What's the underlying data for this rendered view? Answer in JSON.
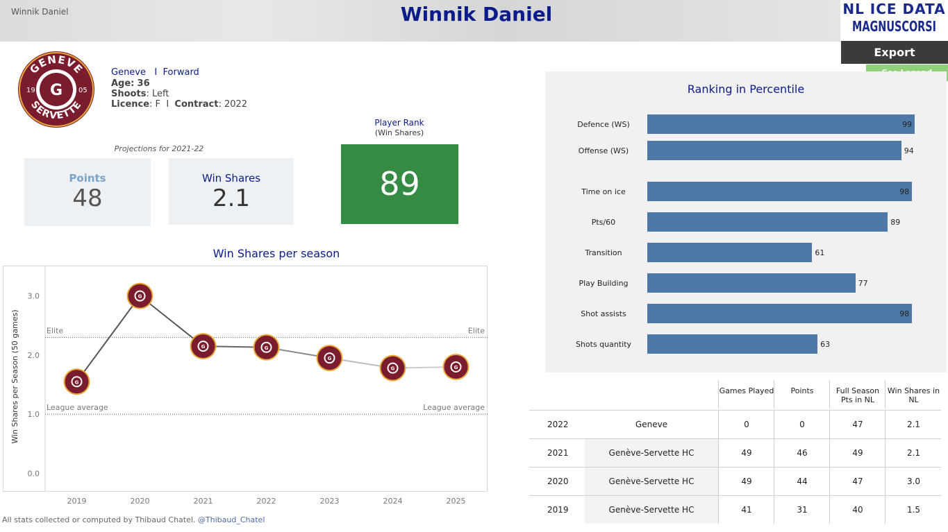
{
  "header": {
    "small_name": "Winnik Daniel",
    "title": "Winnik Daniel",
    "brand_line1": "NL ICE DATA",
    "brand_line2": "MAGNUSCORSI",
    "export_label": "Export",
    "legend_label": "See Legend"
  },
  "team_logo": {
    "top_text": "GENEVE",
    "bottom_text": "SERVETTE",
    "left_num": "19",
    "right_num": "05",
    "colors": {
      "maroon": "#7b1c2e",
      "gold": "#e8a93a",
      "white": "#ffffff"
    }
  },
  "player": {
    "team": "Geneve",
    "sep": "I",
    "position": "Forward",
    "age_label": "Age:",
    "age": "36",
    "shoots_label": "Shoots",
    "shoots": ": Left",
    "licence_label": "Licence",
    "licence": ": F",
    "contract_label": "Contract",
    "contract": ": 2022"
  },
  "projections": {
    "label": "Projections for 2021-22",
    "points_label": "Points",
    "points_value": "48",
    "ws_label": "Win Shares",
    "ws_value": "2.1"
  },
  "rank": {
    "label": "Player Rank",
    "sub": "(Win Shares)",
    "value": "89",
    "color": "#358a44"
  },
  "percentile": {
    "title": "Ranking in Percentile",
    "items": [
      {
        "label": "Defence (WS)",
        "value": 99
      },
      {
        "label": "Offense (WS)",
        "value": 94
      },
      {
        "label": "Time on ice",
        "value": 98
      },
      {
        "label": "Pts/60",
        "value": 89
      },
      {
        "label": "Transition",
        "value": 61
      },
      {
        "label": "Play Building",
        "value": 77
      },
      {
        "label": "Shot assists",
        "value": 98
      },
      {
        "label": "Shots quantity",
        "value": 63
      }
    ],
    "bar_color": "#4e79a7"
  },
  "chart_data": {
    "type": "line",
    "title": "Win Shares per season",
    "ylabel": "Win Shares per Season (50 games)",
    "xlabel": "",
    "x": [
      "2019",
      "2020",
      "2021",
      "2022",
      "2023",
      "2024",
      "2025"
    ],
    "values": [
      1.55,
      3.0,
      2.15,
      2.13,
      1.95,
      1.78,
      1.8
    ],
    "ylim": [
      -0.3,
      3.5
    ],
    "yticks": [
      0.0,
      1.0,
      2.0,
      3.0
    ],
    "ytick_labels": [
      "0.0",
      "1.0",
      "2.0",
      "3.0"
    ],
    "reference_lines": [
      {
        "label": "Elite",
        "value": 2.3
      },
      {
        "label": "League average",
        "value": 1.0
      }
    ],
    "marker": "team-logo"
  },
  "table": {
    "headers": [
      "",
      "",
      "Games Played",
      "Points",
      "Full Season Pts in NL",
      "Win Shares in NL"
    ],
    "rows": [
      [
        "2022",
        "Geneve",
        "0",
        "0",
        "47",
        "2.1"
      ],
      [
        "2021",
        "Genève-Servette HC",
        "49",
        "46",
        "49",
        "2.1"
      ],
      [
        "2020",
        "Genève-Servette HC",
        "49",
        "44",
        "47",
        "3.0"
      ],
      [
        "2019",
        "Genève-Servette HC",
        "41",
        "31",
        "40",
        "1.5"
      ]
    ]
  },
  "footer": {
    "text": "All stats collected or computed by Thibaud Chatel.",
    "handle": "@Thibaud_Chatel"
  }
}
